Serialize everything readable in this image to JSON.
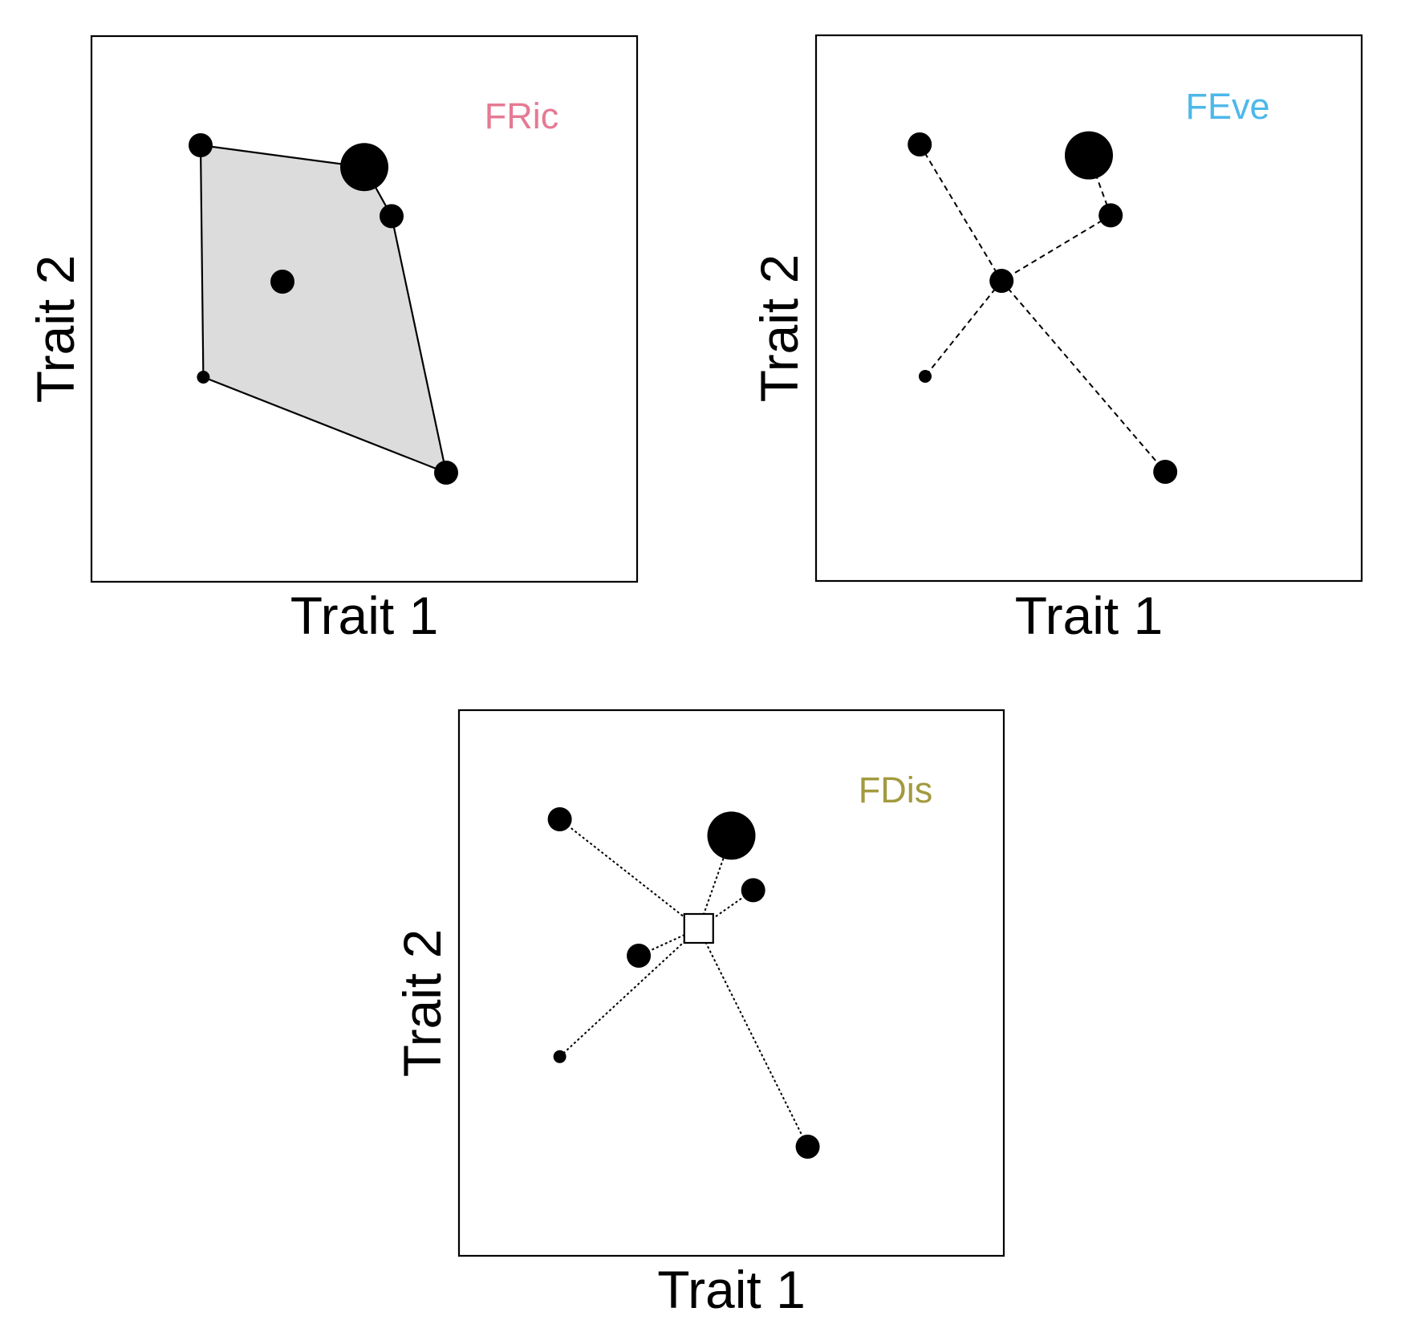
{
  "panels": [
    {
      "id": "fric",
      "title": "FRic",
      "title_color": "#e57a93",
      "xlabel": "Trait 1",
      "ylabel": "Trait 2",
      "style": "hull",
      "hull_order": [
        0,
        1,
        2,
        5,
        4
      ],
      "points": [
        {
          "trait1": 0.2,
          "trait2": 0.8,
          "abundance": 2
        },
        {
          "trait1": 0.5,
          "trait2": 0.76,
          "abundance": 5
        },
        {
          "trait1": 0.55,
          "trait2": 0.67,
          "abundance": 2
        },
        {
          "trait1": 0.35,
          "trait2": 0.55,
          "abundance": 2
        },
        {
          "trait1": 0.205,
          "trait2": 0.375,
          "abundance": 1
        },
        {
          "trait1": 0.65,
          "trait2": 0.2,
          "abundance": 2
        }
      ]
    },
    {
      "id": "feve",
      "title": "FEve",
      "title_color": "#4cb8ea",
      "xlabel": "Trait 1",
      "ylabel": "Trait 2",
      "style": "tree",
      "tree_edges": [
        [
          0,
          3
        ],
        [
          1,
          2
        ],
        [
          2,
          3
        ],
        [
          3,
          4
        ],
        [
          3,
          5
        ]
      ],
      "points": [
        {
          "trait1": 0.19,
          "trait2": 0.8,
          "abundance": 2
        },
        {
          "trait1": 0.5,
          "trait2": 0.78,
          "abundance": 5
        },
        {
          "trait1": 0.54,
          "trait2": 0.67,
          "abundance": 2
        },
        {
          "trait1": 0.34,
          "trait2": 0.55,
          "abundance": 2
        },
        {
          "trait1": 0.2,
          "trait2": 0.375,
          "abundance": 1
        },
        {
          "trait1": 0.64,
          "trait2": 0.2,
          "abundance": 2
        }
      ]
    },
    {
      "id": "fdis",
      "title": "FDis",
      "title_color": "#a39a3e",
      "xlabel": "Trait 1",
      "ylabel": "Trait 2",
      "style": "centroid",
      "centroid": {
        "trait1": 0.44,
        "trait2": 0.6
      },
      "points": [
        {
          "trait1": 0.185,
          "trait2": 0.8,
          "abundance": 2
        },
        {
          "trait1": 0.5,
          "trait2": 0.77,
          "abundance": 5
        },
        {
          "trait1": 0.54,
          "trait2": 0.67,
          "abundance": 2
        },
        {
          "trait1": 0.33,
          "trait2": 0.55,
          "abundance": 2
        },
        {
          "trait1": 0.185,
          "trait2": 0.365,
          "abundance": 1
        },
        {
          "trait1": 0.64,
          "trait2": 0.2,
          "abundance": 2
        }
      ]
    }
  ]
}
